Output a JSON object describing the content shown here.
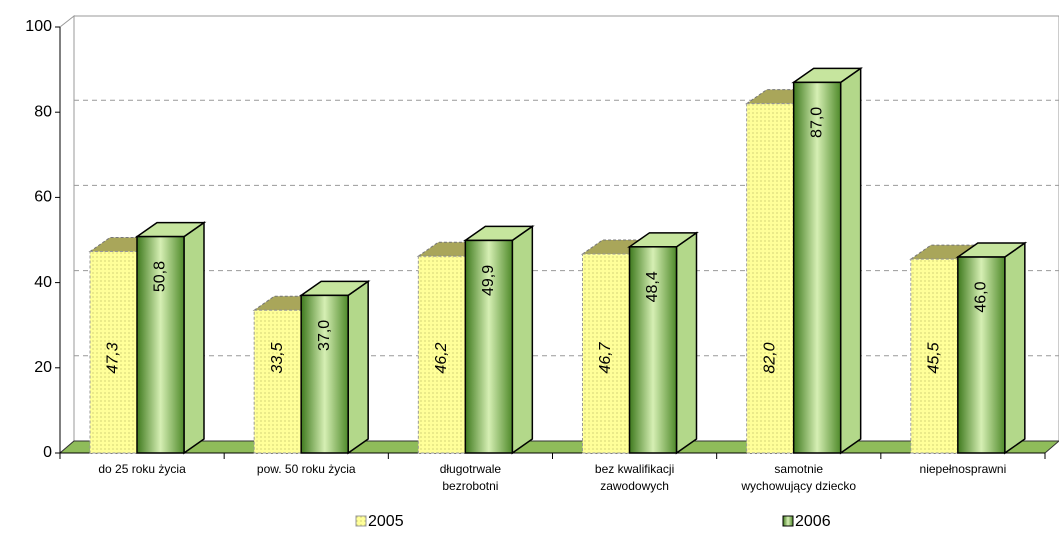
{
  "chart_data": {
    "type": "bar",
    "categories": [
      "do 25 roku życia",
      "pow. 50 roku życia",
      "długotrwale\nbezrobotni",
      "bez kwalifikacji\nzawodowych",
      "samotnie\nwychowujący dziecko",
      "niepełnosprawni"
    ],
    "series": [
      {
        "name": "2005",
        "color": "#ffff99",
        "values": [
          47.3,
          33.5,
          46.2,
          46.7,
          82.0,
          45.5
        ],
        "value_labels": [
          "47,3",
          "33,5",
          "46,2",
          "46,7",
          "82,0",
          "45,5"
        ]
      },
      {
        "name": "2006",
        "color": "#5d9a34",
        "values": [
          50.8,
          37.0,
          49.9,
          48.4,
          87.0,
          46.0
        ],
        "value_labels": [
          "50,8",
          "37,0",
          "49,9",
          "48,4",
          "87,0",
          "46,0"
        ]
      }
    ],
    "ylim": [
      0,
      100
    ],
    "yticks": [
      0,
      20,
      40,
      60,
      80,
      100
    ],
    "grid": true
  }
}
